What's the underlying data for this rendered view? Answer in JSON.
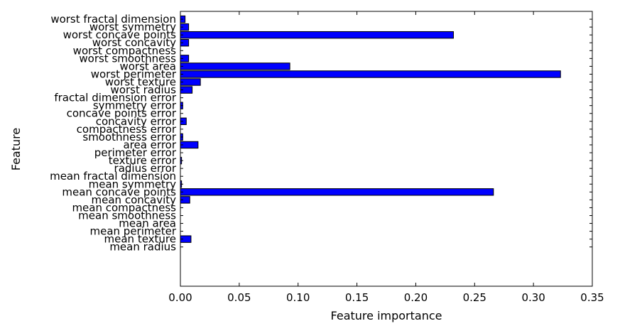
{
  "chart_data": {
    "type": "bar",
    "orientation": "horizontal",
    "title": "",
    "xlabel": "Feature importance",
    "ylabel": "Feature",
    "xlim": [
      0,
      0.35
    ],
    "xticks": [
      0,
      0.05,
      0.1,
      0.15,
      0.2,
      0.25,
      0.3,
      0.35
    ],
    "xtick_labels": [
      "0.00",
      "0.05",
      "0.10",
      "0.15",
      "0.20",
      "0.25",
      "0.30",
      "0.35"
    ],
    "ylim": [
      -5,
      30
    ],
    "grid": false,
    "bar_color": "#0000ff",
    "categories": [
      "mean radius",
      "mean texture",
      "mean perimeter",
      "mean area",
      "mean smoothness",
      "mean compactness",
      "mean concavity",
      "mean concave points",
      "mean symmetry",
      "mean fractal dimension",
      "radius error",
      "texture error",
      "perimeter error",
      "area error",
      "smoothness error",
      "compactness error",
      "concavity error",
      "concave points error",
      "symmetry error",
      "fractal dimension error",
      "worst radius",
      "worst texture",
      "worst perimeter",
      "worst area",
      "worst smoothness",
      "worst compactness",
      "worst concavity",
      "worst concave points",
      "worst symmetry",
      "worst fractal dimension"
    ],
    "values": [
      0.0,
      0.009,
      0.0,
      0.0,
      0.0,
      0.0,
      0.008,
      0.266,
      0.001,
      0.0,
      0.0,
      0.001,
      0.0,
      0.015,
      0.002,
      0.0,
      0.005,
      0.0,
      0.002,
      0.0,
      0.01,
      0.017,
      0.323,
      0.093,
      0.007,
      0.0,
      0.007,
      0.232,
      0.007,
      0.004
    ]
  }
}
